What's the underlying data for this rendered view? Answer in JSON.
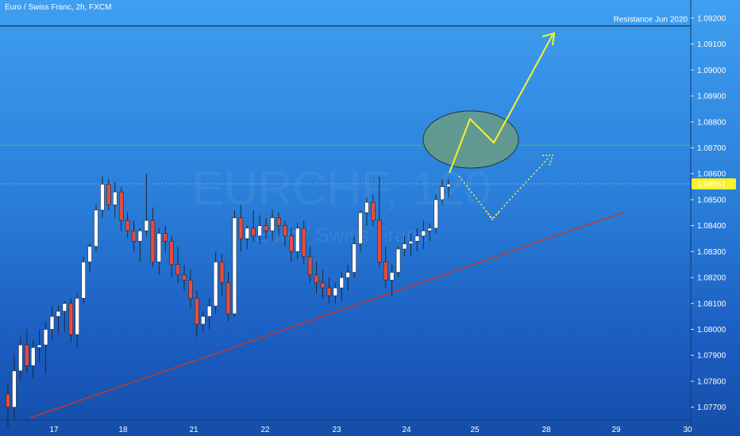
{
  "header": {
    "symbol_line": "Euro / Swiss Franc, 2h, FXCM"
  },
  "watermark": {
    "ticker": "EURCHF, 120",
    "name": "Euro / Swiss Franc"
  },
  "annotations": {
    "resistance_label": "Resistance Jun 2020"
  },
  "colors": {
    "bull_body": "#ffffff",
    "bear_body": "#e74c3c",
    "wick": "#1b2a3a",
    "resistance_line": "#0b1f33",
    "support_line": "#c0392b",
    "level_line": "#2ecc40",
    "projection": "#f7f22d",
    "ellipse_fill": "#6a9c84",
    "price_tag_bg": "#f7f22d"
  },
  "chart_data": {
    "type": "candlestick",
    "title": "",
    "xlabel": "",
    "ylabel": "",
    "ylim": [
      1.0765,
      1.0927
    ],
    "y_ticks": [
      "1.07700",
      "1.07800",
      "1.07900",
      "1.08000",
      "1.08100",
      "1.08200",
      "1.08300",
      "1.08400",
      "1.08500",
      "1.08600",
      "1.08700",
      "1.08800",
      "1.08900",
      "1.09000",
      "1.09100",
      "1.09200"
    ],
    "x_ticks": [
      "17",
      "18",
      "21",
      "22",
      "23",
      "24",
      "25",
      "28",
      "29",
      "30"
    ],
    "last_price": "1.08561",
    "resistance_level": 1.0917,
    "green_level": 1.0871,
    "candles": [
      [
        1.0775,
        1.0779,
        1.0762,
        1.077
      ],
      [
        1.077,
        1.079,
        1.0765,
        1.0784
      ],
      [
        1.0784,
        1.0797,
        1.078,
        1.0794
      ],
      [
        1.0794,
        1.08,
        1.0783,
        1.0786
      ],
      [
        1.0786,
        1.0796,
        1.0781,
        1.0793
      ],
      [
        1.0793,
        1.08,
        1.0787,
        1.0794
      ],
      [
        1.0794,
        1.0803,
        1.0783,
        1.08
      ],
      [
        1.08,
        1.0809,
        1.0796,
        1.0805
      ],
      [
        1.0805,
        1.0809,
        1.0798,
        1.0807
      ],
      [
        1.0807,
        1.0811,
        1.0799,
        1.081
      ],
      [
        1.081,
        1.0812,
        1.0795,
        1.0798
      ],
      [
        1.0798,
        1.0814,
        1.0793,
        1.0812
      ],
      [
        1.0812,
        1.0828,
        1.081,
        1.0826
      ],
      [
        1.0826,
        1.0833,
        1.0822,
        1.0832
      ],
      [
        1.0832,
        1.0848,
        1.083,
        1.0846
      ],
      [
        1.0846,
        1.0859,
        1.0843,
        1.0856
      ],
      [
        1.0856,
        1.0858,
        1.0846,
        1.0848
      ],
      [
        1.0848,
        1.0857,
        1.0843,
        1.0853
      ],
      [
        1.0853,
        1.0855,
        1.0838,
        1.0842
      ],
      [
        1.0842,
        1.0845,
        1.0835,
        1.0838
      ],
      [
        1.0838,
        1.0842,
        1.083,
        1.0834
      ],
      [
        1.0834,
        1.0839,
        1.0826,
        1.0838
      ],
      [
        1.0838,
        1.086,
        1.0836,
        1.0842
      ],
      [
        1.0842,
        1.0847,
        1.0824,
        1.0826
      ],
      [
        1.0826,
        1.0839,
        1.0821,
        1.0837
      ],
      [
        1.0837,
        1.084,
        1.083,
        1.0834
      ],
      [
        1.0834,
        1.0836,
        1.082,
        1.0825
      ],
      [
        1.0825,
        1.0832,
        1.0818,
        1.0821
      ],
      [
        1.0821,
        1.0825,
        1.0815,
        1.0819
      ],
      [
        1.0819,
        1.0823,
        1.0808,
        1.0812
      ],
      [
        1.0812,
        1.0815,
        1.0797,
        1.0802
      ],
      [
        1.0802,
        1.0807,
        1.0799,
        1.0805
      ],
      [
        1.0805,
        1.0812,
        1.08,
        1.0809
      ],
      [
        1.0809,
        1.083,
        1.0806,
        1.0826
      ],
      [
        1.0826,
        1.0829,
        1.0813,
        1.0818
      ],
      [
        1.0818,
        1.0822,
        1.0803,
        1.0806
      ],
      [
        1.0806,
        1.0846,
        1.0805,
        1.0843
      ],
      [
        1.0843,
        1.0848,
        1.083,
        1.0835
      ],
      [
        1.0835,
        1.084,
        1.0831,
        1.0839
      ],
      [
        1.0839,
        1.0846,
        1.0834,
        1.0836
      ],
      [
        1.0836,
        1.0844,
        1.0833,
        1.084
      ],
      [
        1.084,
        1.0843,
        1.0835,
        1.0838
      ],
      [
        1.0838,
        1.0846,
        1.0834,
        1.0843
      ],
      [
        1.0843,
        1.0845,
        1.0836,
        1.084
      ],
      [
        1.084,
        1.0842,
        1.0832,
        1.0836
      ],
      [
        1.0836,
        1.0839,
        1.0826,
        1.083
      ],
      [
        1.083,
        1.0841,
        1.0827,
        1.0839
      ],
      [
        1.0839,
        1.0842,
        1.0825,
        1.0828
      ],
      [
        1.0828,
        1.0832,
        1.0818,
        1.0821
      ],
      [
        1.0821,
        1.0826,
        1.0814,
        1.0818
      ],
      [
        1.0818,
        1.0823,
        1.0812,
        1.0816
      ],
      [
        1.0816,
        1.082,
        1.081,
        1.0813
      ],
      [
        1.0813,
        1.0818,
        1.081,
        1.0816
      ],
      [
        1.0816,
        1.0822,
        1.0811,
        1.082
      ],
      [
        1.082,
        1.0825,
        1.0815,
        1.0822
      ],
      [
        1.0822,
        1.0836,
        1.082,
        1.0833
      ],
      [
        1.0833,
        1.0846,
        1.083,
        1.0845
      ],
      [
        1.0845,
        1.0851,
        1.084,
        1.0849
      ],
      [
        1.0849,
        1.0852,
        1.084,
        1.0842
      ],
      [
        1.0842,
        1.0859,
        1.0824,
        1.0826
      ],
      [
        1.0826,
        1.0832,
        1.0816,
        1.0819
      ],
      [
        1.0819,
        1.0825,
        1.0813,
        1.0822
      ],
      [
        1.0822,
        1.0832,
        1.082,
        1.0831
      ],
      [
        1.0831,
        1.0836,
        1.0828,
        1.0833
      ],
      [
        1.0833,
        1.0837,
        1.0828,
        1.0834
      ],
      [
        1.0834,
        1.0839,
        1.083,
        1.0836
      ],
      [
        1.0836,
        1.0842,
        1.0831,
        1.0838
      ],
      [
        1.0838,
        1.0841,
        1.0834,
        1.0839
      ],
      [
        1.0839,
        1.0852,
        1.0837,
        1.085
      ],
      [
        1.085,
        1.0858,
        1.0848,
        1.0855
      ],
      [
        1.0855,
        1.0858,
        1.0851,
        1.0856
      ]
    ]
  }
}
